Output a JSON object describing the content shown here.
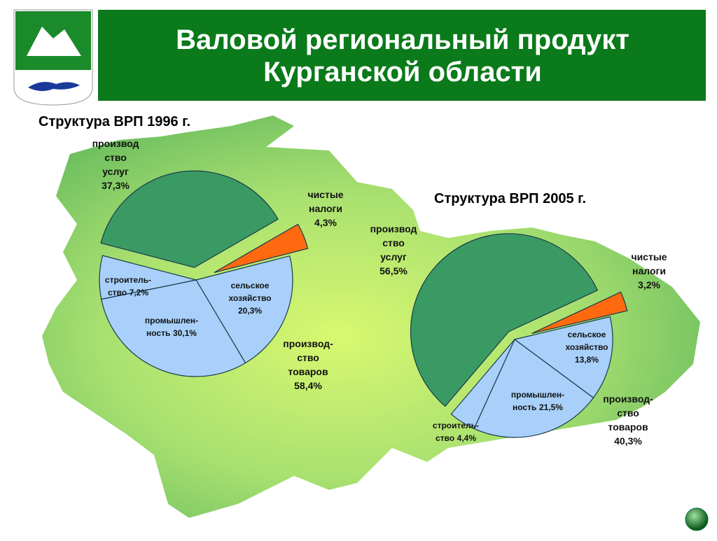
{
  "header": {
    "title": "Валовой региональный продукт\nКурганской области"
  },
  "chart_data": [
    {
      "type": "pie",
      "title": "Структура ВРП 1996 г.",
      "categories": [
        "чистые\nналоги",
        "сельское\nхозяйство",
        "промышлен-\nность",
        "строитель-\nство",
        "производ\nство\nуслуг"
      ],
      "values": [
        4.3,
        20.3,
        30.1,
        7.2,
        37.3
      ],
      "value_labels": [
        "4,3%",
        "20,3%",
        "30,1%",
        "7,2%",
        "37,3%"
      ],
      "colors": [
        "#ff6a10",
        "#a8d0fa",
        "#a8d0fa",
        "#a8d0fa",
        "#3a9a64"
      ],
      "annotation": "производ-\nство\nтоваров\n58,4%"
    },
    {
      "type": "pie",
      "title": "Структура ВРП 2005 г.",
      "categories": [
        "чистые\nналоги",
        "сельское\nхозяйство",
        "промышлен-\nность",
        "строитель-\nство",
        "производ\nство\nуслуг"
      ],
      "values": [
        3.2,
        13.8,
        21.5,
        4.4,
        56.5
      ],
      "value_labels": [
        "3,2%",
        "13,8%",
        "21,5%",
        "4,4%",
        "56,5%"
      ],
      "colors": [
        "#ff6a10",
        "#a8d0fa",
        "#a8d0fa",
        "#a8d0fa",
        "#3a9a64"
      ],
      "annotation": "производ-\nство\nтоваров\n40,3%"
    }
  ]
}
